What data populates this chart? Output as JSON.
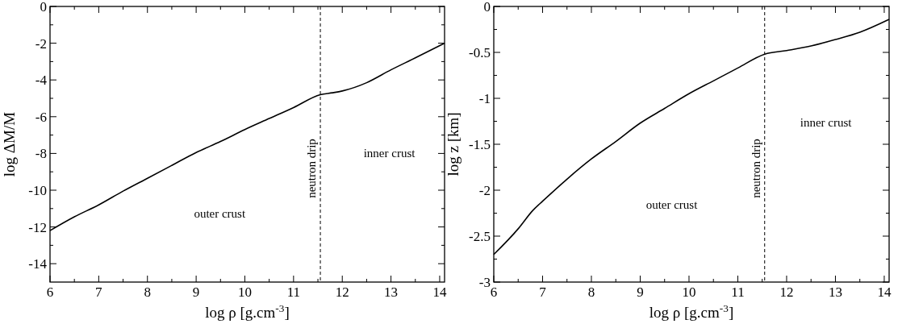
{
  "chart_data": [
    {
      "type": "line",
      "xlabel": "log ρ [g.cm$^{-3}$]",
      "ylabel": "log ΔM/M",
      "x": [
        6,
        6.5,
        7,
        7.5,
        8,
        8.5,
        9,
        9.5,
        10,
        10.5,
        11,
        11.55,
        11.8,
        12,
        12.5,
        13,
        13.5,
        14.1
      ],
      "series": [
        {
          "color": "#000000",
          "values": [
            -12.2,
            -11.45,
            -10.8,
            -10.05,
            -9.35,
            -8.65,
            -7.95,
            -7.35,
            -6.7,
            -6.1,
            -5.5,
            -4.8,
            -4.7,
            -4.6,
            -4.15,
            -3.45,
            -2.8,
            -2.0
          ]
        }
      ],
      "xlim": [
        6,
        14.1
      ],
      "ylim": [
        -15,
        0
      ],
      "xticks": [
        6,
        {
          "value": 6.5,
          "label": null
        },
        7,
        {
          "value": 7.5,
          "label": null
        },
        8,
        {
          "value": 8.5,
          "label": null
        },
        9,
        {
          "value": 9.5,
          "label": null
        },
        10,
        {
          "value": 10.5,
          "label": null
        },
        11,
        {
          "value": 11.5,
          "label": null
        },
        12,
        {
          "value": 12.5,
          "label": null
        },
        13,
        {
          "value": 13.5,
          "label": null
        },
        14
      ],
      "yticks": [
        0,
        {
          "value": -1,
          "label": null
        },
        -2,
        {
          "value": -3,
          "label": null
        },
        -4,
        {
          "value": -5,
          "label": null
        },
        -6,
        {
          "value": -7,
          "label": null
        },
        -8,
        {
          "value": -9,
          "label": null
        },
        -10,
        {
          "value": -11,
          "label": null
        },
        -12,
        {
          "value": -13,
          "label": null
        },
        -14
      ],
      "ref_lines": [
        {
          "axis": "x",
          "value": 11.55,
          "label": "neutron drip",
          "color": "#000000",
          "line_style": "dashed"
        }
      ],
      "annotations": [
        "outer crust",
        "inner crust"
      ],
      "grid": false,
      "marker": "none",
      "line_style": "solid"
    },
    {
      "type": "line",
      "xlabel": "log ρ [g.cm$^{-3}$]",
      "ylabel": "log z [km]",
      "x": [
        6,
        6.5,
        6.8,
        7,
        7.5,
        8,
        8.5,
        9,
        9.5,
        10,
        10.5,
        11,
        11.55,
        12,
        12.5,
        13,
        13.5,
        14.1
      ],
      "series": [
        {
          "color": "#000000",
          "values": [
            -2.7,
            -2.42,
            -2.22,
            -2.12,
            -1.88,
            -1.66,
            -1.47,
            -1.27,
            -1.11,
            -0.95,
            -0.81,
            -0.67,
            -0.52,
            -0.48,
            -0.43,
            -0.36,
            -0.28,
            -0.14
          ]
        }
      ],
      "xlim": [
        6,
        14.1
      ],
      "ylim": [
        -3,
        0
      ],
      "xticks": [
        6,
        {
          "value": 6.5,
          "label": null
        },
        7,
        {
          "value": 7.5,
          "label": null
        },
        8,
        {
          "value": 8.5,
          "label": null
        },
        9,
        {
          "value": 9.5,
          "label": null
        },
        10,
        {
          "value": 10.5,
          "label": null
        },
        11,
        {
          "value": 11.5,
          "label": null
        },
        12,
        {
          "value": 12.5,
          "label": null
        },
        13,
        {
          "value": 13.5,
          "label": null
        },
        14
      ],
      "yticks": [
        0,
        {
          "value": -0.25,
          "label": null
        },
        -0.5,
        {
          "value": -0.75,
          "label": null
        },
        -1,
        {
          "value": -1.25,
          "label": null
        },
        -1.5,
        {
          "value": -1.75,
          "label": null
        },
        -2,
        {
          "value": -2.25,
          "label": null
        },
        -2.5,
        {
          "value": -2.75,
          "label": null
        },
        -3
      ],
      "ref_lines": [
        {
          "axis": "x",
          "value": 11.55,
          "label": "neutron drip",
          "color": "#000000",
          "line_style": "dashed"
        }
      ],
      "annotations": [
        "outer crust",
        "inner crust"
      ],
      "grid": false,
      "marker": "none",
      "line_style": "solid"
    }
  ]
}
